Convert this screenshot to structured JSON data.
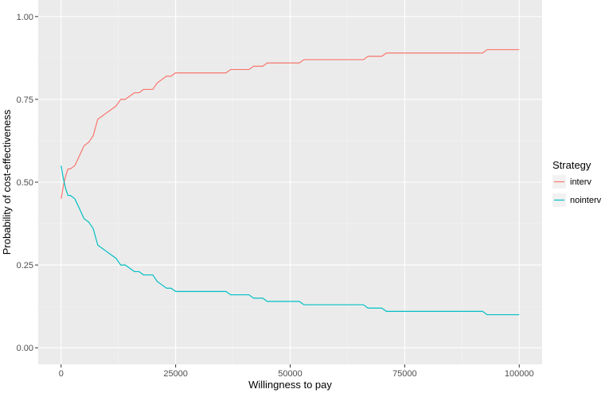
{
  "chart_data": {
    "type": "line",
    "xlabel": "Willingness to pay",
    "ylabel": "Probability of cost-effectiveness",
    "xlim": [
      -5000,
      105000
    ],
    "ylim": [
      -0.05,
      1.05
    ],
    "x_ticks": [
      0,
      25000,
      50000,
      75000,
      100000
    ],
    "x_tick_labels": [
      "0",
      "25000",
      "50000",
      "75000",
      "100000"
    ],
    "y_ticks": [
      0,
      0.25,
      0.5,
      0.75,
      1
    ],
    "y_tick_labels": [
      "0.00",
      "0.25",
      "0.50",
      "0.75",
      "1.00"
    ],
    "grid": true,
    "background": "#ebebeb",
    "legend": {
      "title": "Strategy",
      "position": "right"
    },
    "series": [
      {
        "name": "interv",
        "color": "#F8766D",
        "x": [
          0,
          500,
          1000,
          1500,
          2000,
          3000,
          4000,
          5000,
          6000,
          7000,
          8000,
          9000,
          10000,
          11000,
          12000,
          13000,
          14000,
          15000,
          16000,
          17000,
          18000,
          20000,
          21000,
          22000,
          23000,
          24000,
          25000,
          26000,
          30000,
          34000,
          36000,
          37000,
          40000,
          41000,
          42000,
          44000,
          45000,
          50000,
          52000,
          53000,
          60000,
          66000,
          67000,
          70000,
          71000,
          72000,
          80000,
          92000,
          93000,
          100000
        ],
        "y": [
          0.45,
          0.49,
          0.52,
          0.54,
          0.54,
          0.55,
          0.58,
          0.61,
          0.62,
          0.64,
          0.69,
          0.7,
          0.71,
          0.72,
          0.73,
          0.75,
          0.75,
          0.76,
          0.77,
          0.77,
          0.78,
          0.78,
          0.8,
          0.81,
          0.82,
          0.82,
          0.83,
          0.83,
          0.83,
          0.83,
          0.83,
          0.84,
          0.84,
          0.84,
          0.85,
          0.85,
          0.86,
          0.86,
          0.86,
          0.87,
          0.87,
          0.87,
          0.88,
          0.88,
          0.89,
          0.89,
          0.89,
          0.89,
          0.9,
          0.9
        ]
      },
      {
        "name": "nointerv",
        "color": "#00BFC4",
        "x": [
          0,
          500,
          1000,
          1500,
          2000,
          3000,
          4000,
          5000,
          6000,
          7000,
          8000,
          9000,
          10000,
          11000,
          12000,
          13000,
          14000,
          15000,
          16000,
          17000,
          18000,
          20000,
          21000,
          22000,
          23000,
          24000,
          25000,
          26000,
          30000,
          34000,
          36000,
          37000,
          40000,
          41000,
          42000,
          44000,
          45000,
          50000,
          52000,
          53000,
          60000,
          66000,
          67000,
          70000,
          71000,
          72000,
          80000,
          92000,
          93000,
          100000
        ],
        "y": [
          0.55,
          0.51,
          0.48,
          0.46,
          0.46,
          0.45,
          0.42,
          0.39,
          0.38,
          0.36,
          0.31,
          0.3,
          0.29,
          0.28,
          0.27,
          0.25,
          0.25,
          0.24,
          0.23,
          0.23,
          0.22,
          0.22,
          0.2,
          0.19,
          0.18,
          0.18,
          0.17,
          0.17,
          0.17,
          0.17,
          0.17,
          0.16,
          0.16,
          0.16,
          0.15,
          0.15,
          0.14,
          0.14,
          0.14,
          0.13,
          0.13,
          0.13,
          0.12,
          0.12,
          0.11,
          0.11,
          0.11,
          0.11,
          0.1,
          0.1
        ]
      }
    ]
  }
}
